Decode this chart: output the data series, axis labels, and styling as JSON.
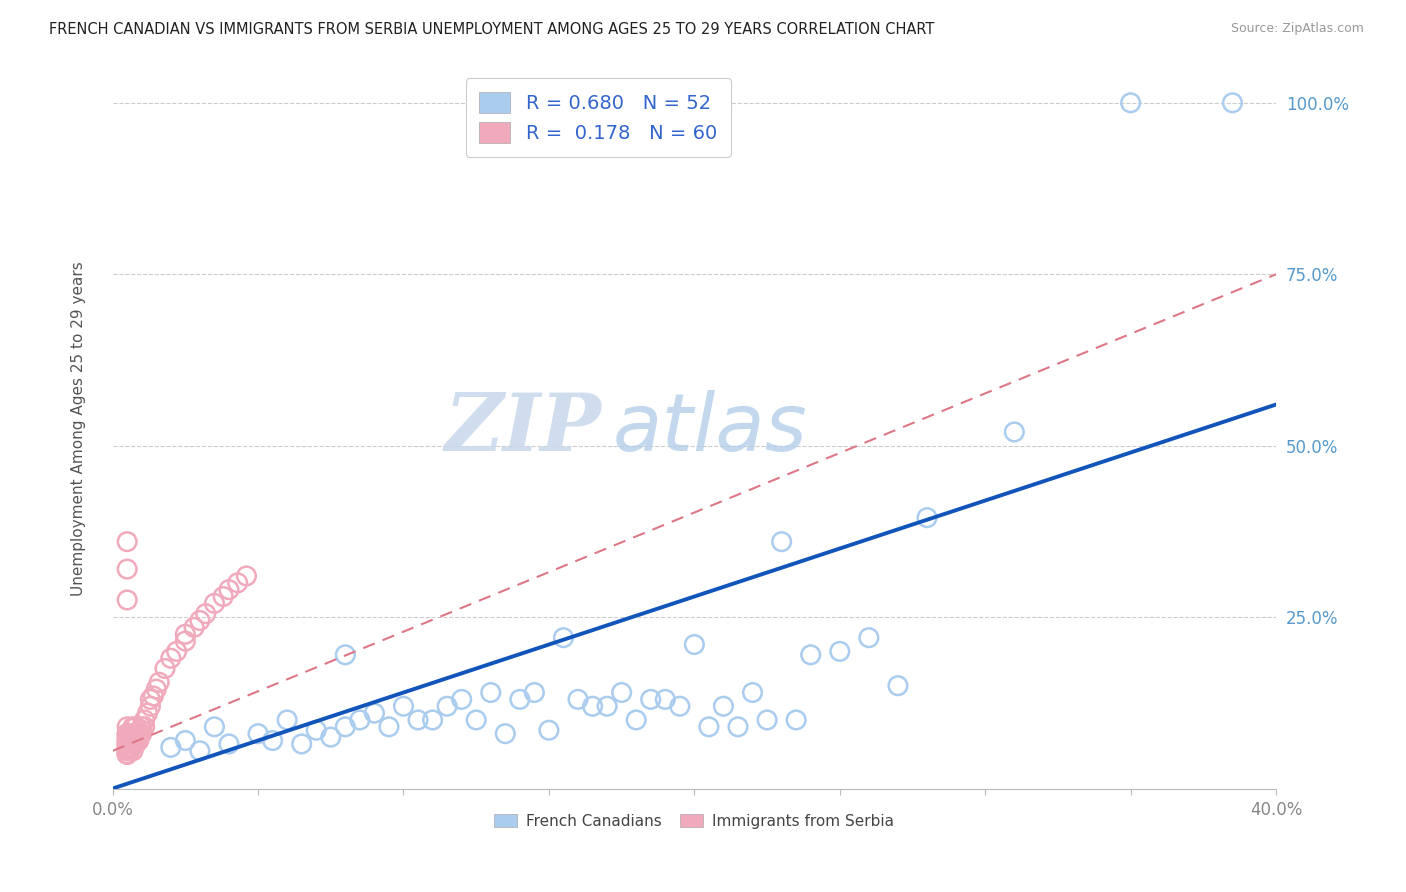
{
  "title": "FRENCH CANADIAN VS IMMIGRANTS FROM SERBIA UNEMPLOYMENT AMONG AGES 25 TO 29 YEARS CORRELATION CHART",
  "source": "Source: ZipAtlas.com",
  "ylabel": "Unemployment Among Ages 25 to 29 years",
  "xlim": [
    0.0,
    0.4
  ],
  "ylim": [
    0.0,
    1.05
  ],
  "xticks": [
    0.0,
    0.05,
    0.1,
    0.15,
    0.2,
    0.25,
    0.3,
    0.35,
    0.4
  ],
  "xticklabels": [
    "0.0%",
    "",
    "",
    "",
    "",
    "",
    "",
    "",
    "40.0%"
  ],
  "yticks": [
    0.0,
    0.25,
    0.5,
    0.75,
    1.0
  ],
  "yticklabels_right": [
    "",
    "25.0%",
    "50.0%",
    "75.0%",
    "100.0%"
  ],
  "blue_color": "#aaccee",
  "pink_color": "#f0aabb",
  "blue_line_color": "#1155bb",
  "pink_line_color": "#dd7788",
  "legend_blue_R": "0.680",
  "legend_blue_N": "52",
  "legend_pink_R": "0.178",
  "legend_pink_N": "60",
  "legend_label_blue": "French Canadians",
  "legend_label_pink": "Immigrants from Serbia",
  "watermark_zip": "ZIP",
  "watermark_atlas": "atlas",
  "blue_scatter_x": [
    0.02,
    0.025,
    0.03,
    0.035,
    0.04,
    0.05,
    0.055,
    0.06,
    0.065,
    0.07,
    0.075,
    0.08,
    0.08,
    0.085,
    0.09,
    0.095,
    0.1,
    0.105,
    0.11,
    0.115,
    0.12,
    0.125,
    0.13,
    0.135,
    0.14,
    0.145,
    0.15,
    0.155,
    0.16,
    0.165,
    0.17,
    0.175,
    0.18,
    0.185,
    0.19,
    0.195,
    0.2,
    0.205,
    0.21,
    0.215,
    0.22,
    0.225,
    0.23,
    0.235,
    0.24,
    0.25,
    0.26,
    0.27,
    0.28,
    0.31,
    0.35,
    0.385
  ],
  "blue_scatter_y": [
    0.06,
    0.07,
    0.055,
    0.09,
    0.065,
    0.08,
    0.07,
    0.1,
    0.065,
    0.085,
    0.075,
    0.195,
    0.09,
    0.1,
    0.11,
    0.09,
    0.12,
    0.1,
    0.1,
    0.12,
    0.13,
    0.1,
    0.14,
    0.08,
    0.13,
    0.14,
    0.085,
    0.22,
    0.13,
    0.12,
    0.12,
    0.14,
    0.1,
    0.13,
    0.13,
    0.12,
    0.21,
    0.09,
    0.12,
    0.09,
    0.14,
    0.1,
    0.36,
    0.1,
    0.195,
    0.2,
    0.22,
    0.15,
    0.395,
    0.52,
    1.0,
    1.0
  ],
  "pink_scatter_x": [
    0.005,
    0.005,
    0.005,
    0.005,
    0.005,
    0.005,
    0.005,
    0.005,
    0.005,
    0.005,
    0.005,
    0.005,
    0.005,
    0.005,
    0.005,
    0.006,
    0.006,
    0.006,
    0.006,
    0.006,
    0.006,
    0.007,
    0.007,
    0.007,
    0.007,
    0.007,
    0.008,
    0.008,
    0.008,
    0.008,
    0.009,
    0.009,
    0.009,
    0.01,
    0.01,
    0.01,
    0.011,
    0.011,
    0.012,
    0.013,
    0.013,
    0.014,
    0.015,
    0.016,
    0.018,
    0.02,
    0.022,
    0.025,
    0.025,
    0.028,
    0.03,
    0.032,
    0.035,
    0.038,
    0.04,
    0.043,
    0.046,
    0.005,
    0.005,
    0.005
  ],
  "pink_scatter_y": [
    0.05,
    0.05,
    0.05,
    0.055,
    0.055,
    0.06,
    0.06,
    0.065,
    0.065,
    0.07,
    0.07,
    0.075,
    0.08,
    0.08,
    0.09,
    0.055,
    0.06,
    0.065,
    0.07,
    0.075,
    0.08,
    0.055,
    0.065,
    0.07,
    0.08,
    0.09,
    0.065,
    0.07,
    0.08,
    0.09,
    0.07,
    0.075,
    0.08,
    0.08,
    0.085,
    0.09,
    0.09,
    0.1,
    0.11,
    0.12,
    0.13,
    0.135,
    0.145,
    0.155,
    0.175,
    0.19,
    0.2,
    0.215,
    0.225,
    0.235,
    0.245,
    0.255,
    0.27,
    0.28,
    0.29,
    0.3,
    0.31,
    0.275,
    0.32,
    0.36
  ],
  "blue_line_x": [
    0.0,
    0.4
  ],
  "blue_line_y": [
    0.0,
    0.56
  ],
  "pink_line_x": [
    0.0,
    0.4
  ],
  "pink_line_y": [
    0.055,
    0.75
  ]
}
